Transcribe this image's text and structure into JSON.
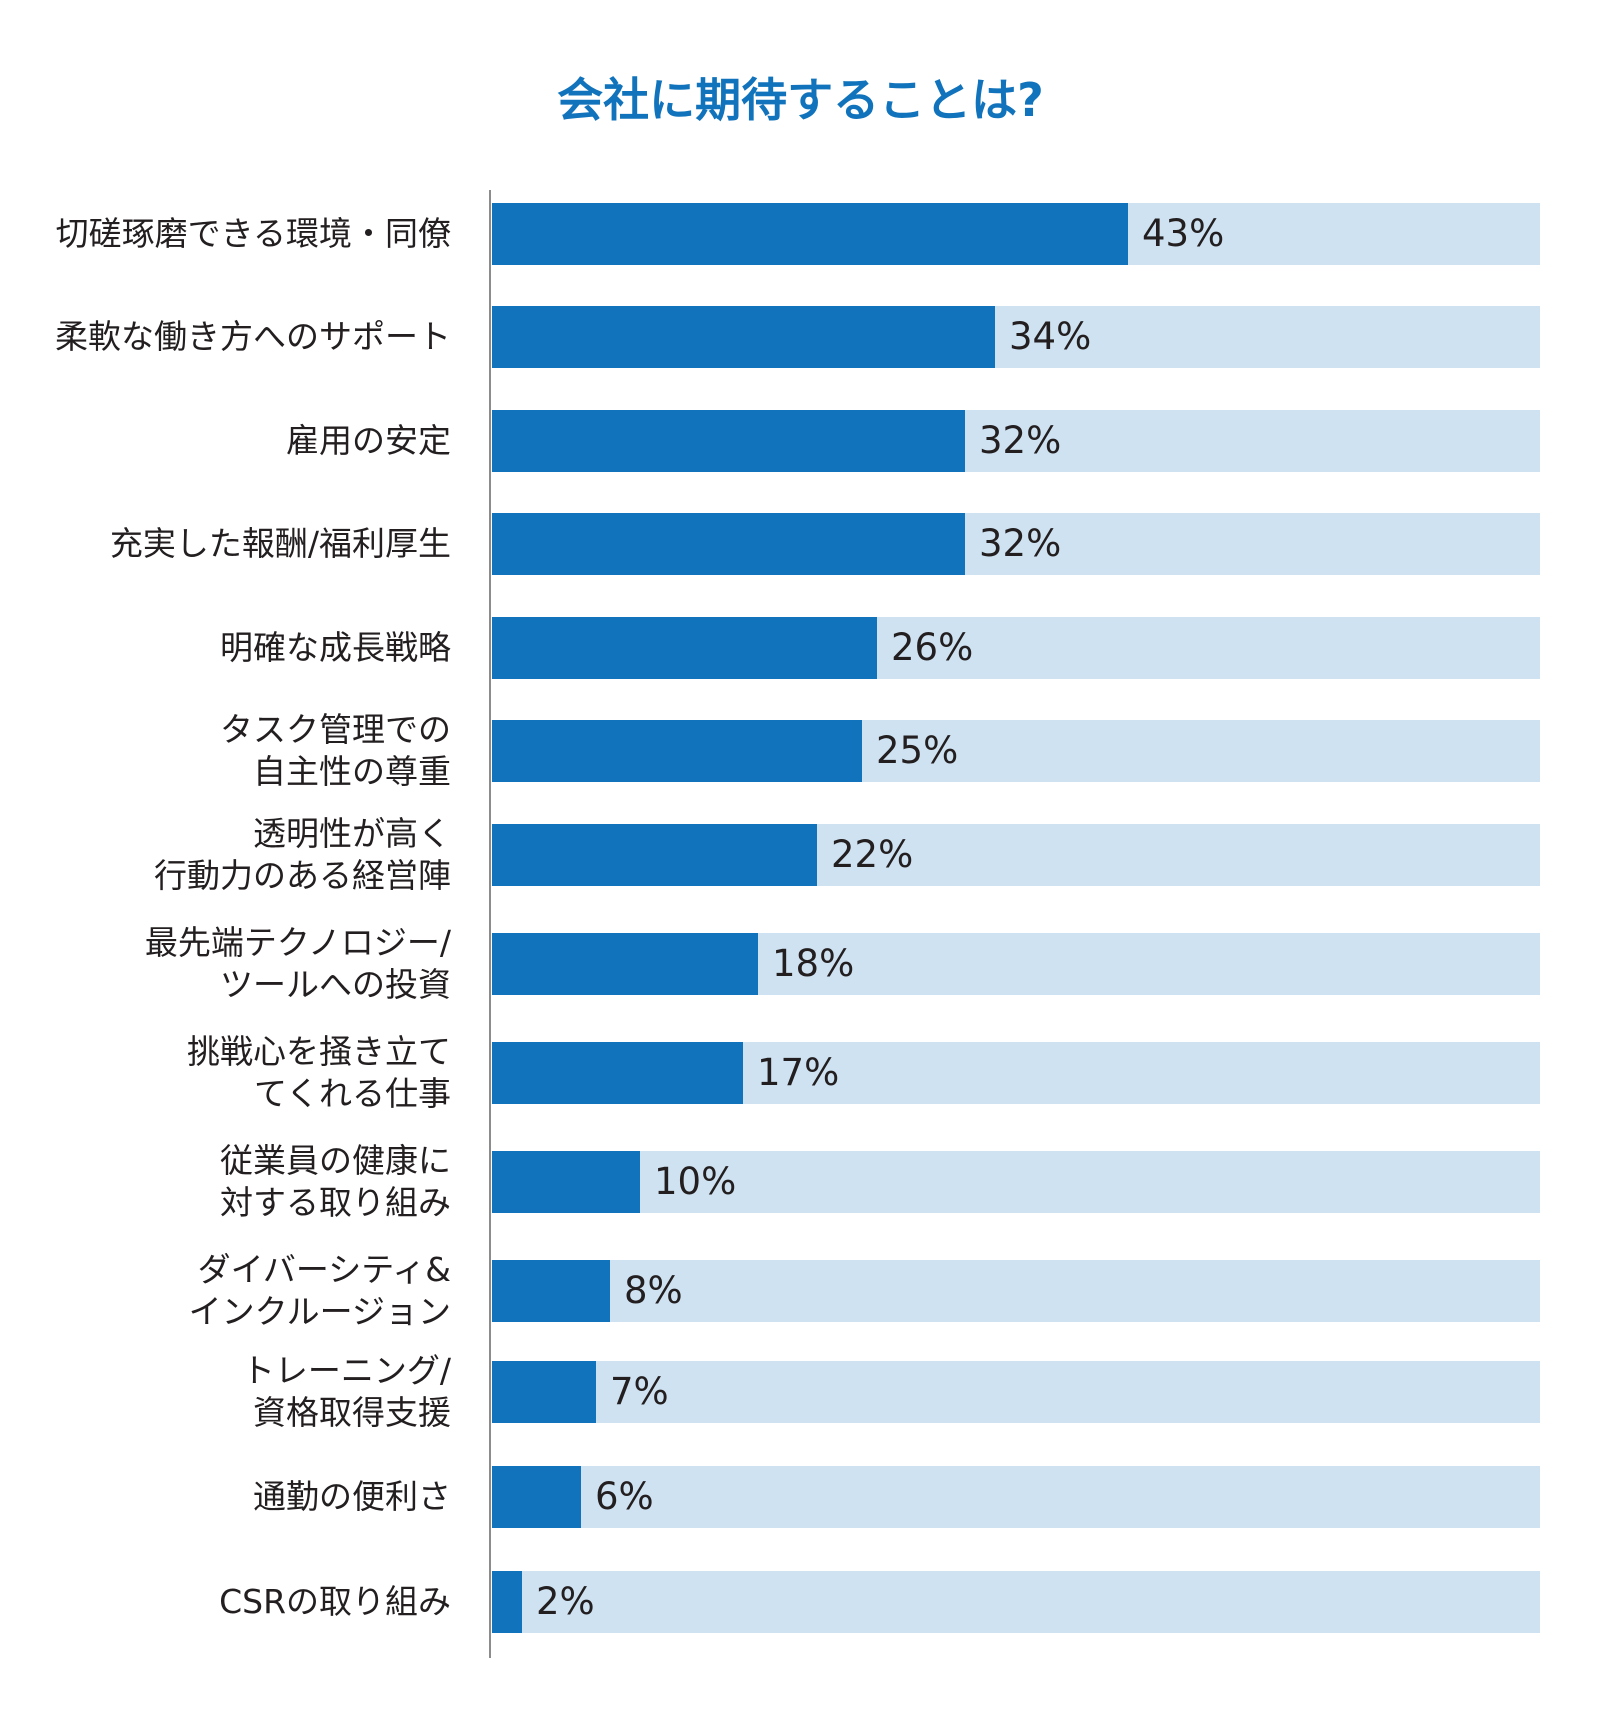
{
  "colors": {
    "title": "#1173bb",
    "bar": "#1173bb",
    "track": "#cfe2f1",
    "axis": "#8c8c8c",
    "text": "#231f20"
  },
  "chart_data": {
    "type": "bar",
    "orientation": "horizontal",
    "title": "会社に期待することは?",
    "xlabel": "",
    "ylabel": "",
    "xlim": [
      0,
      100
    ],
    "grid": false,
    "legend": "none",
    "value_suffix": "%",
    "categories": [
      [
        "切磋琢磨できる環境・同僚"
      ],
      [
        "柔軟な働き方へのサポート"
      ],
      [
        "雇用の安定"
      ],
      [
        "充実した報酬/福利厚生"
      ],
      [
        "明確な成長戦略"
      ],
      [
        "タスク管理での",
        "自主性の尊重"
      ],
      [
        "透明性が高く",
        "行動力のある経営陣"
      ],
      [
        "最先端テクノロジー/",
        "ツールへの投資"
      ],
      [
        "挑戦心を掻き立て",
        "てくれる仕事"
      ],
      [
        "従業員の健康に",
        "対する取り組み"
      ],
      [
        "ダイバーシティ&",
        "インクルージョン"
      ],
      [
        "トレーニング/",
        "資格取得支援"
      ],
      [
        "通勤の便利さ"
      ],
      [
        "CSRの取り組み"
      ]
    ],
    "values": [
      43,
      34,
      32,
      32,
      26,
      25,
      22,
      18,
      17,
      10,
      8,
      7,
      6,
      2
    ]
  }
}
